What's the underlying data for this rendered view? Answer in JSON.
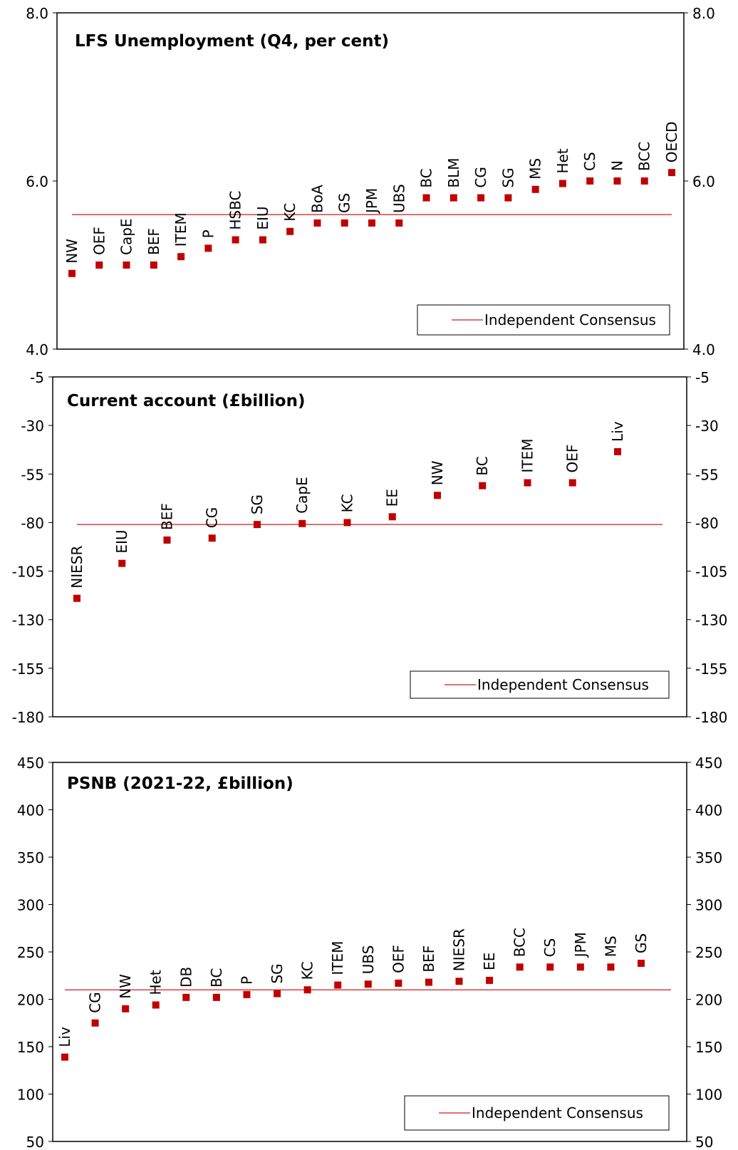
{
  "chart_data": [
    {
      "type": "scatter",
      "title": "LFS Unemployment  (Q4, per cent)",
      "ylim": [
        4.0,
        8.0
      ],
      "yticks": [
        "4.0",
        "6.0",
        "8.0"
      ],
      "consensus": 5.6,
      "legend": {
        "label": "Independent Consensus",
        "placement": "bottom-right"
      },
      "colors": {
        "marker": "#c00000",
        "consensus_line": "#d94040"
      },
      "categories": [
        "NW",
        "OEF",
        "CapE",
        "BEF",
        "ITEM",
        "P",
        "HSBC",
        "EIU",
        "KC",
        "BoA",
        "GS",
        "JPM",
        "UBS",
        "BC",
        "BLM",
        "CG",
        "SG",
        "MS",
        "Het",
        "CS",
        "N",
        "BCC",
        "OECD"
      ],
      "values": [
        4.9,
        5.0,
        5.0,
        5.0,
        5.1,
        5.2,
        5.3,
        5.3,
        5.4,
        5.5,
        5.5,
        5.5,
        5.5,
        5.8,
        5.8,
        5.8,
        5.8,
        5.9,
        5.97,
        6.0,
        6.0,
        6.0,
        6.1
      ]
    },
    {
      "type": "scatter",
      "title": "Current account (£billion)",
      "ylim": [
        -180,
        -5
      ],
      "yticks_left": [
        "-5",
        "-30",
        "-55",
        "-80",
        "-105",
        "-130",
        "-155",
        "-180"
      ],
      "yticks_right": [
        "-5",
        "-30",
        "-55",
        "-80",
        "-105",
        "-130",
        "-155",
        "-180"
      ],
      "consensus": -81,
      "legend": {
        "label": "Independent Consensus",
        "placement": "bottom-right"
      },
      "colors": {
        "marker": "#c00000",
        "consensus_line": "#d94040"
      },
      "categories": [
        "NIESR",
        "EIU",
        "BEF",
        "CG",
        "SG",
        "CapE",
        "KC",
        "EE",
        "NW",
        "BC",
        "ITEM",
        "OEF",
        "Liv"
      ],
      "values": [
        -119,
        -101,
        -89,
        -88,
        -81,
        -80.5,
        -80,
        -77,
        -66,
        -61,
        -59.5,
        -59.5,
        -43.5
      ]
    },
    {
      "type": "scatter",
      "title": "PSNB (2021-22, £billion)",
      "ylim": [
        50,
        450
      ],
      "yticks": [
        "50",
        "100",
        "150",
        "200",
        "250",
        "300",
        "350",
        "400",
        "450"
      ],
      "consensus": 210,
      "legend": {
        "label": "Independent Consensus",
        "placement": "bottom-right"
      },
      "colors": {
        "marker": "#c00000",
        "consensus_line": "#d94040"
      },
      "categories": [
        "Liv",
        "CG",
        "NW",
        "Het",
        "DB",
        "BC",
        "P",
        "SG",
        "KC",
        "ITEM",
        "UBS",
        "OEF",
        "BEF",
        "NIESR",
        "EE",
        "BCC",
        "CS",
        "JPM",
        "MS",
        "GS"
      ],
      "values": [
        139,
        175,
        190,
        194,
        202,
        202,
        205,
        206,
        210,
        215,
        216,
        217,
        218,
        219,
        220,
        234,
        234,
        234,
        234,
        238
      ]
    }
  ]
}
